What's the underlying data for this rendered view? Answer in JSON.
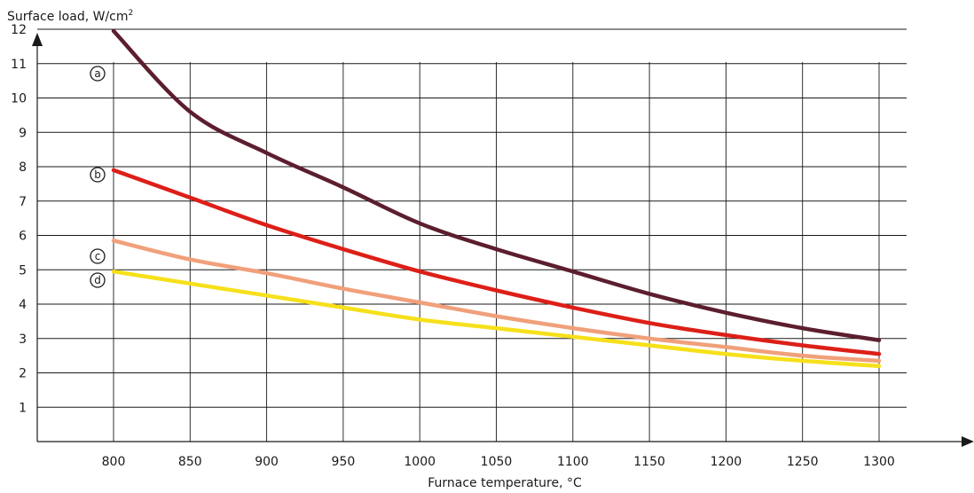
{
  "chart_data": {
    "type": "line",
    "ylabel": "Surface load, W/cm",
    "ylabel_sup": "2",
    "xlabel": "Furnace temperature, °C",
    "xlim": [
      750,
      1310
    ],
    "ylim": [
      0,
      12.5
    ],
    "x_ticks": [
      800,
      850,
      900,
      950,
      1000,
      1050,
      1100,
      1150,
      1200,
      1250,
      1300
    ],
    "y_ticks": [
      1,
      2,
      3,
      4,
      5,
      6,
      7,
      8,
      9,
      10,
      11,
      12
    ],
    "grid": true,
    "series": [
      {
        "name": "a",
        "color": "#5c1e2e",
        "x": [
          800,
          850,
          900,
          950,
          1000,
          1050,
          1100,
          1150,
          1200,
          1250,
          1300
        ],
        "y": [
          11.95,
          9.6,
          8.4,
          7.4,
          6.35,
          5.6,
          4.95,
          4.3,
          3.75,
          3.3,
          2.95
        ]
      },
      {
        "name": "b",
        "color": "#dd1f18",
        "x": [
          800,
          850,
          900,
          950,
          1000,
          1050,
          1100,
          1150,
          1200,
          1250,
          1300
        ],
        "y": [
          7.9,
          7.1,
          6.3,
          5.6,
          4.95,
          4.4,
          3.9,
          3.45,
          3.1,
          2.8,
          2.55
        ]
      },
      {
        "name": "c",
        "color": "#f0a07a",
        "x": [
          800,
          850,
          900,
          950,
          1000,
          1050,
          1100,
          1150,
          1200,
          1250,
          1300
        ],
        "y": [
          5.85,
          5.3,
          4.9,
          4.45,
          4.05,
          3.65,
          3.3,
          3.0,
          2.75,
          2.5,
          2.35
        ]
      },
      {
        "name": "d",
        "color": "#f6e01a",
        "x": [
          800,
          850,
          900,
          950,
          1000,
          1050,
          1100,
          1150,
          1200,
          1250,
          1300
        ],
        "y": [
          4.95,
          4.6,
          4.25,
          3.9,
          3.55,
          3.3,
          3.05,
          2.8,
          2.55,
          2.35,
          2.2
        ]
      }
    ]
  }
}
